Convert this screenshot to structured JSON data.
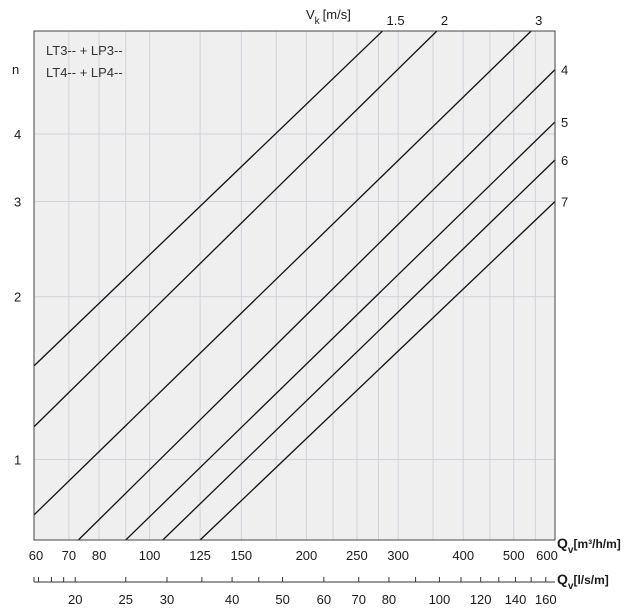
{
  "chart_data": {
    "type": "line",
    "scale": "log-log",
    "grid": true,
    "legend_text": [
      "LT3-- + LP3--",
      "LT4-- + LP4--"
    ],
    "y_axis": {
      "label": "n",
      "ticks": [
        "1",
        "2",
        "3",
        "4"
      ],
      "tick_values": [
        1,
        2,
        3,
        4
      ],
      "range": [
        0.71,
        6.2
      ]
    },
    "x_axis_primary": {
      "label": "Q",
      "subscript": "v",
      "unit": "[m³/h/m]",
      "ticks": [
        "60",
        "70",
        "80",
        "100",
        "125",
        "150",
        "200",
        "250",
        "300",
        "400",
        "500",
        "600"
      ],
      "tick_values": [
        60,
        70,
        80,
        100,
        125,
        150,
        200,
        250,
        300,
        400,
        500,
        600
      ],
      "range": [
        60,
        600
      ]
    },
    "x_axis_secondary": {
      "label": "Q",
      "subscript": "v",
      "unit": "[l/s/m]",
      "ticks": [
        "20",
        "25",
        "30",
        "40",
        "50",
        "60",
        "70",
        "80",
        "100",
        "120",
        "140",
        "160"
      ],
      "tick_values": [
        20,
        25,
        30,
        40,
        50,
        60,
        70,
        80,
        100,
        120,
        140,
        160
      ]
    },
    "series_label_axis": {
      "label": "V",
      "subscript": "k",
      "unit": "[m/s]"
    },
    "series": [
      {
        "name": "1.5",
        "points": [
          [
            60,
            1.49
          ],
          [
            280,
            6.2
          ]
        ]
      },
      {
        "name": "2",
        "points": [
          [
            60,
            1.15
          ],
          [
            356,
            6.2
          ]
        ]
      },
      {
        "name": "3",
        "points": [
          [
            60,
            0.79
          ],
          [
            540,
            6.2
          ]
        ]
      },
      {
        "name": "4",
        "points": [
          [
            73,
            0.71
          ],
          [
            600,
            5.26
          ]
        ]
      },
      {
        "name": "5",
        "points": [
          [
            90,
            0.71
          ],
          [
            600,
            4.21
          ]
        ]
      },
      {
        "name": "6",
        "points": [
          [
            106,
            0.71
          ],
          [
            600,
            3.58
          ]
        ]
      },
      {
        "name": "7",
        "points": [
          [
            125,
            0.71
          ],
          [
            600,
            3.0
          ]
        ]
      }
    ]
  }
}
